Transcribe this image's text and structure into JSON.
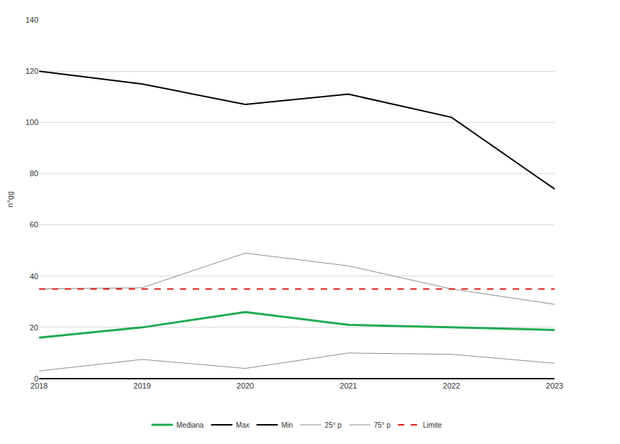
{
  "chart_data": {
    "type": "line",
    "y_label": "n°gg",
    "categories": [
      "2018",
      "2019",
      "2020",
      "2021",
      "2022",
      "2023"
    ],
    "series": [
      {
        "name": "Mediana",
        "color": "#1fab4f",
        "line_style": "solid",
        "values": [
          16,
          20,
          26,
          21,
          20,
          19
        ]
      },
      {
        "name": "Max",
        "color": "#000000",
        "line_style": "solid",
        "values": [
          120,
          115,
          107,
          111,
          102,
          74
        ]
      },
      {
        "name": "Min",
        "color": "#000000",
        "line_style": "solid",
        "values": [
          0,
          0,
          0,
          0,
          0,
          0
        ]
      },
      {
        "name": "25° p",
        "color": "#8c8c8c",
        "line_style": "solid",
        "values": [
          3,
          7.5,
          4,
          10,
          9.5,
          6
        ]
      },
      {
        "name": "75° p",
        "color": "#8c8c8c",
        "line_style": "solid",
        "values": [
          35,
          35.5,
          49,
          44,
          35,
          29
        ]
      },
      {
        "name": "Limite",
        "color": "#e0201b",
        "line_style": "dashed",
        "values": [
          35,
          35,
          35,
          35,
          35,
          35
        ]
      }
    ],
    "ylim": [
      0,
      140
    ],
    "yticks": [
      0,
      20,
      40,
      60,
      80,
      100,
      120,
      140
    ],
    "grid": true,
    "legend": "bottom"
  }
}
